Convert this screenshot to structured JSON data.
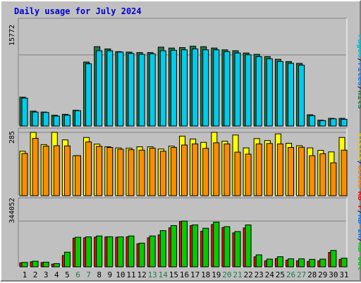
{
  "chart_data": [
    {
      "type": "bar",
      "title": "Daily usage for July 2024",
      "categories": [
        "1",
        "2",
        "3",
        "4",
        "5",
        "6",
        "7",
        "8",
        "9",
        "10",
        "11",
        "12",
        "13",
        "14",
        "15",
        "16",
        "17",
        "18",
        "19",
        "20",
        "21",
        "22",
        "23",
        "24",
        "25",
        "26",
        "27",
        "28",
        "29",
        "30",
        "31"
      ],
      "category_colors": [
        "#000000",
        "#000000",
        "#000000",
        "#000000",
        "#000000",
        "#1c7c47",
        "#1c7c47",
        "#000000",
        "#000000",
        "#000000",
        "#000000",
        "#000000",
        "#1c7c47",
        "#1c7c47",
        "#000000",
        "#000000",
        "#000000",
        "#000000",
        "#000000",
        "#1c7c47",
        "#1c7c47",
        "#000000",
        "#000000",
        "#000000",
        "#000000",
        "#1c7c47",
        "#1c7c47",
        "#000000",
        "#000000",
        "#000000",
        "#000000"
      ],
      "ytick_label": "15772",
      "ytick_value": 15772,
      "legend": [
        {
          "label": "Pages",
          "color": "#00bbdd"
        },
        {
          "label": "/",
          "color": "#000080"
        },
        {
          "label": "Files",
          "color": "#0080ff"
        },
        {
          "label": "/",
          "color": "#000080"
        },
        {
          "label": "Hits",
          "color": "#1c7c47"
        }
      ],
      "series": [
        {
          "name": "Hits",
          "color": "#1c7c47",
          "values": [
            6400,
            3300,
            3100,
            2400,
            2600,
            3500,
            14200,
            17600,
            17100,
            16500,
            16400,
            16300,
            16300,
            17500,
            17300,
            17400,
            17700,
            17600,
            17300,
            16900,
            16700,
            16200,
            15900,
            15400,
            14800,
            14300,
            13900,
            2500,
            1300,
            1700,
            1700
          ]
        },
        {
          "name": "Files",
          "color": "#00ccee",
          "values": [
            6200,
            3100,
            3000,
            2200,
            2400,
            3400,
            13800,
            16700,
            16700,
            16400,
            16100,
            15900,
            16000,
            16700,
            16800,
            16900,
            17100,
            16900,
            16900,
            16500,
            16200,
            15800,
            15400,
            14900,
            14300,
            13900,
            13500,
            2300,
            1200,
            1600,
            1500
          ]
        },
        {
          "name": "Pages",
          "color": "#00bbdd",
          "values": [
            0,
            0,
            0,
            0,
            0,
            0,
            0,
            0,
            0,
            0,
            0,
            0,
            0,
            0,
            0,
            0,
            0,
            0,
            0,
            0,
            0,
            0,
            0,
            0,
            0,
            0,
            0,
            0,
            0,
            0,
            0
          ]
        }
      ]
    },
    {
      "type": "bar",
      "categories": [
        "1",
        "2",
        "3",
        "4",
        "5",
        "6",
        "7",
        "8",
        "9",
        "10",
        "11",
        "12",
        "13",
        "14",
        "15",
        "16",
        "17",
        "18",
        "19",
        "20",
        "21",
        "22",
        "23",
        "24",
        "25",
        "26",
        "27",
        "28",
        "29",
        "30",
        "31"
      ],
      "ytick_label": "285",
      "ytick_value": 285,
      "legend": [
        {
          "label": "Visits",
          "color": "#e0d000"
        },
        {
          "label": "/",
          "color": "#000080"
        },
        {
          "label": "Sites",
          "color": "#ff8000"
        }
      ],
      "series": [
        {
          "name": "Visits",
          "color": "#ffff00",
          "values": [
            200,
            285,
            230,
            285,
            251,
            180,
            262,
            232,
            220,
            215,
            214,
            220,
            220,
            210,
            223,
            268,
            255,
            240,
            285,
            245,
            273,
            215,
            257,
            248,
            278,
            236,
            225,
            215,
            204,
            197,
            262
          ]
        },
        {
          "name": "Sites",
          "color": "#ff8c00",
          "values": [
            190,
            258,
            223,
            225,
            224,
            180,
            242,
            222,
            217,
            209,
            207,
            205,
            214,
            200,
            217,
            228,
            233,
            213,
            238,
            233,
            196,
            187,
            233,
            235,
            233,
            217,
            218,
            180,
            189,
            148,
            205
          ]
        }
      ]
    },
    {
      "type": "bar",
      "categories": [
        "1",
        "2",
        "3",
        "4",
        "5",
        "6",
        "7",
        "8",
        "9",
        "10",
        "11",
        "12",
        "13",
        "14",
        "15",
        "16",
        "17",
        "18",
        "19",
        "20",
        "21",
        "22",
        "23",
        "24",
        "25",
        "26",
        "27",
        "28",
        "29",
        "30",
        "31"
      ],
      "ytick_label": "344052",
      "ytick_value": 344052,
      "legend": [
        {
          "label": "KB F",
          "color": "#ff0000"
        },
        {
          "label": "/",
          "color": "#000080"
        },
        {
          "label": "KB In",
          "color": "#0080ff"
        },
        {
          "label": "/",
          "color": "#000080"
        },
        {
          "label": "KB Out",
          "color": "#00cc00"
        }
      ],
      "series": [
        {
          "name": "KB F",
          "color": "#ff0000",
          "values": [
            30000,
            38000,
            32000,
            20000,
            85000,
            215000,
            218000,
            223000,
            225000,
            222000,
            225000,
            173000,
            218000,
            240000,
            293000,
            340000,
            310000,
            268000,
            318000,
            295000,
            255000,
            292000,
            75000,
            45000,
            62000,
            50000,
            45000,
            40000,
            45000,
            108000,
            55000
          ]
        },
        {
          "name": "KB In",
          "color": "#0080ff",
          "values": [
            0,
            0,
            0,
            0,
            0,
            0,
            0,
            0,
            0,
            0,
            0,
            0,
            0,
            0,
            0,
            0,
            0,
            0,
            0,
            0,
            0,
            0,
            0,
            0,
            0,
            0,
            0,
            0,
            0,
            0,
            0
          ]
        },
        {
          "name": "KB Out",
          "color": "#00cc00",
          "values": [
            33000,
            42000,
            35000,
            24000,
            110000,
            222000,
            225000,
            232000,
            226000,
            225000,
            232000,
            178000,
            232000,
            272000,
            310000,
            344000,
            315000,
            290000,
            336000,
            302000,
            265000,
            315000,
            90000,
            58000,
            76000,
            60000,
            60000,
            56000,
            58000,
            123000,
            65000
          ]
        }
      ]
    }
  ]
}
